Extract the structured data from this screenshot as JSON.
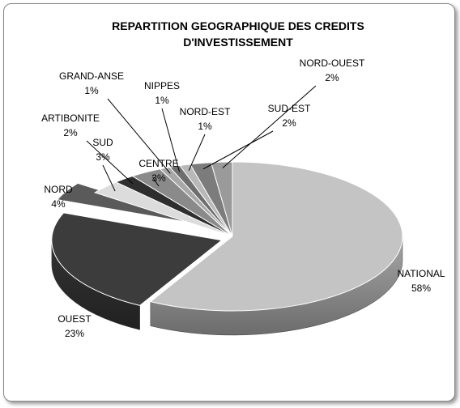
{
  "chart_data": {
    "type": "pie",
    "title": "REPARTITION GEOGRAPHIQUE DES CREDITS D'INVESTISSEMENT",
    "categories": [
      "NATIONAL",
      "OUEST",
      "NORD",
      "SUD",
      "ARTIBONITE",
      "CENTRE",
      "GRAND-ANSE",
      "NIPPES",
      "NORD-EST",
      "SUD-EST",
      "NORD-OUEST"
    ],
    "values": [
      58,
      23,
      4,
      3,
      2,
      3,
      1,
      1,
      1,
      2,
      2
    ],
    "value_labels": [
      "58%",
      "23%",
      "4%",
      "3%",
      "2%",
      "3%",
      "1%",
      "1%",
      "1%",
      "2%",
      "2%"
    ],
    "colors": [
      "#c4c4c4",
      "#3c3c3c",
      "#5a5a5a",
      "#dcdcdc",
      "#2e2e2e",
      "#8a8a8a",
      "#a8a8a8",
      "#6e6e6e",
      "#b8b8b8",
      "#7c7c7c",
      "#9a9a9a"
    ]
  }
}
